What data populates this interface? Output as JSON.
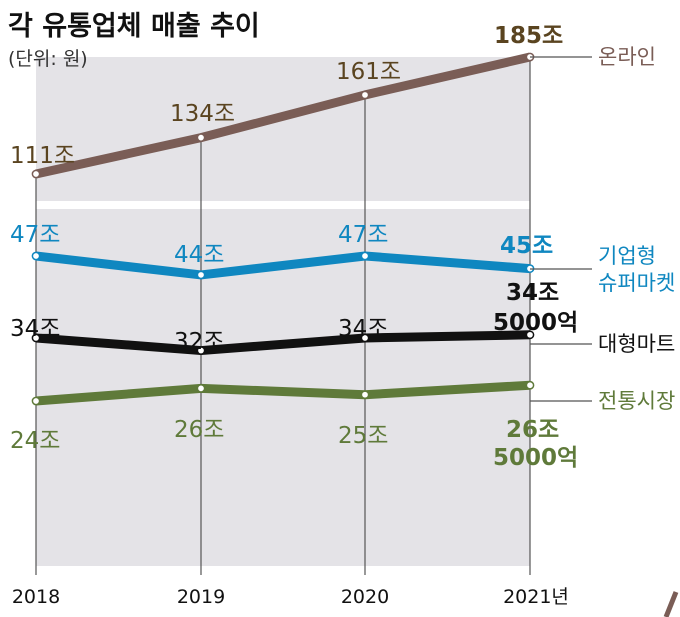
{
  "title": "각 유통업체 매출 추이",
  "unit": "(단위: 원)",
  "colors": {
    "online": "#7a5d56",
    "supermarket": "#0f87c0",
    "mart": "#111111",
    "market": "#5f7a3a",
    "online_label": "#5a4420",
    "panel": "#e4e3e7"
  },
  "chart_data": {
    "type": "line",
    "x": [
      "2018",
      "2019",
      "2020",
      "2021년"
    ],
    "series": [
      {
        "key": "online",
        "name": "온라인",
        "values": [
          111,
          134,
          161,
          185
        ],
        "labels": [
          "111조",
          "134조",
          "161조",
          "185조"
        ]
      },
      {
        "key": "supermarket",
        "name": "기업형 슈퍼마켓",
        "values": [
          47,
          44,
          47,
          45
        ],
        "labels": [
          "47조",
          "44조",
          "47조",
          "45조"
        ]
      },
      {
        "key": "mart",
        "name": "대형마트",
        "values": [
          34,
          32,
          34,
          34.5
        ],
        "labels": [
          "34조",
          "32조",
          "34조",
          "34조 5000억"
        ]
      },
      {
        "key": "market",
        "name": "전통시장",
        "values": [
          24,
          26,
          25,
          26.5
        ],
        "labels": [
          "24조",
          "26조",
          "25조",
          "26조 5000억"
        ]
      }
    ]
  },
  "legend": {
    "online": "온라인",
    "supermarket_line1": "기업형",
    "supermarket_line2": "슈퍼마켓",
    "mart": "대형마트",
    "market": "전통시장"
  },
  "labels": {
    "online": [
      "111조",
      "134조",
      "161조",
      "185조"
    ],
    "supermarket": [
      "47조",
      "44조",
      "47조",
      "45조"
    ],
    "mart": [
      "34조",
      "32조",
      "34조"
    ],
    "mart_last_line1": "34조",
    "mart_last_line2": "5000억",
    "market": [
      "24조",
      "26조",
      "25조"
    ],
    "market_last_line1": "26조",
    "market_last_line2": "5000억"
  }
}
